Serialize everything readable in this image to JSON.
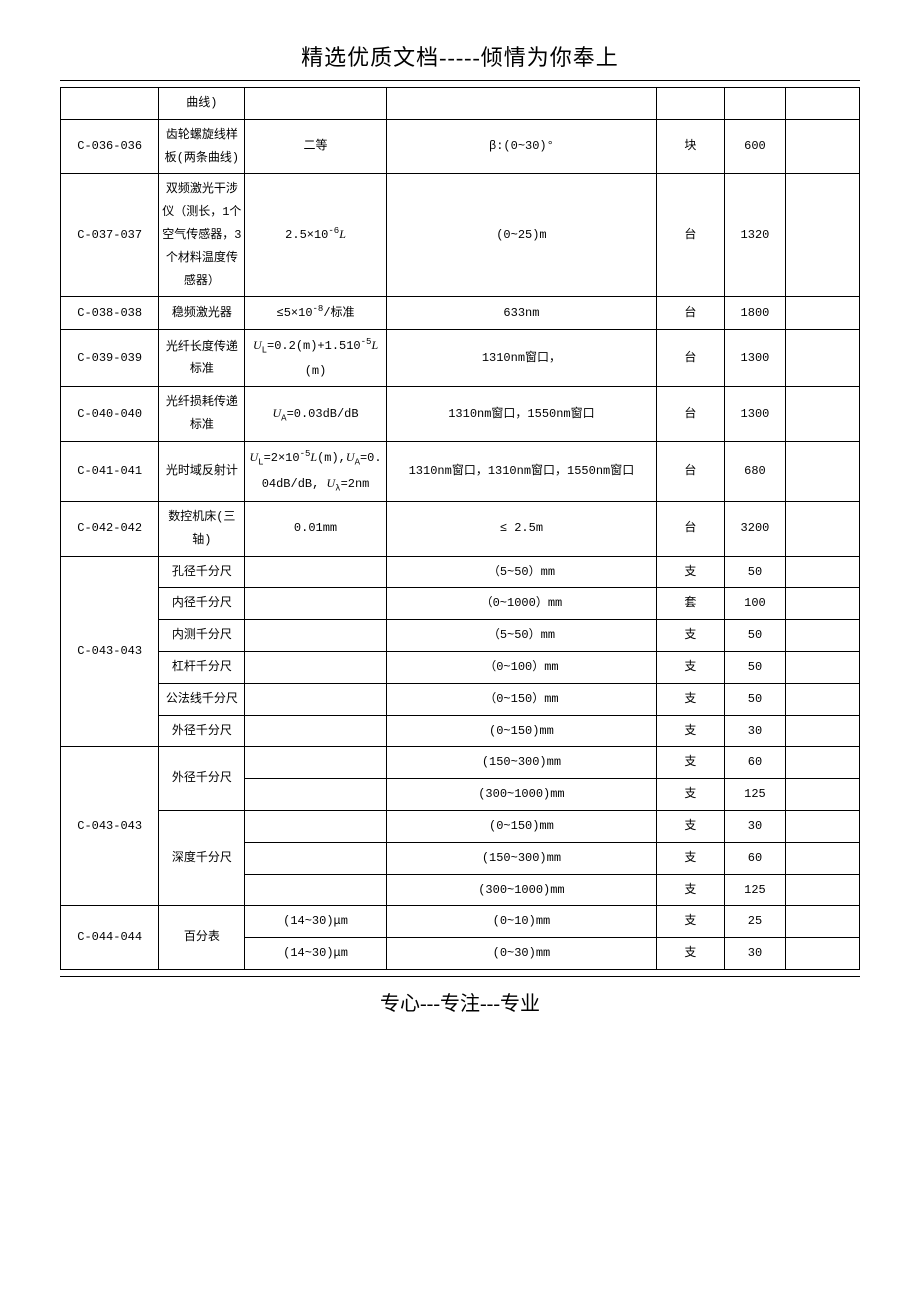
{
  "header": "精选优质文档-----倾情为你奉上",
  "footer": "专心---专注---专业",
  "rows": [
    {
      "c1": "",
      "c2": "曲线)",
      "c3": "",
      "c4": "",
      "c5": "",
      "c6": "",
      "c7": ""
    },
    {
      "c1": "C-036-036",
      "c2": "齿轮螺旋线样板(两条曲线)",
      "c3": "二等",
      "c4": "β:(0~30)°",
      "c5": "块",
      "c6": "600",
      "c7": ""
    },
    {
      "c1": "C-037-037",
      "c2": "双频激光干涉仪（测长，1个空气传感器，3个材料温度传感器）",
      "c3": "2.5×10⁻⁶L",
      "c4": "(0~25)m",
      "c5": "台",
      "c6": "1320",
      "c7": ""
    },
    {
      "c1": "C-038-038",
      "c2": "稳频激光器",
      "c3": "≤5×10⁻⁸/标准",
      "c4": "633nm",
      "c5": "台",
      "c6": "1800",
      "c7": ""
    },
    {
      "c1": "C-039-039",
      "c2": "光纤长度传递标准",
      "c3": "UL=0.2(m)+1.510⁻⁵L(m)",
      "c4": "1310nm窗口，",
      "c5": "台",
      "c6": "1300",
      "c7": ""
    },
    {
      "c1": "C-040-040",
      "c2": "光纤损耗传递标准",
      "c3": "UA=0.03dB/dB",
      "c4": "1310nm窗口，1550nm窗口",
      "c5": "台",
      "c6": "1300",
      "c7": ""
    },
    {
      "c1": "C-041-041",
      "c2": "光时域反射计",
      "c3": "UL=2×10⁻⁵L(m),UA=0.04dB/dB, Uλ=2nm",
      "c4": "1310nm窗口，1310nm窗口，1550nm窗口",
      "c5": "台",
      "c6": "680",
      "c7": ""
    },
    {
      "c1": "C-042-042",
      "c2": "数控机床(三轴)",
      "c3": "0.01mm",
      "c4": "≤ 2.5m",
      "c5": "台",
      "c6": "3200",
      "c7": ""
    }
  ],
  "group43a": {
    "code": "C-043-043",
    "items": [
      {
        "name": "孔径千分尺",
        "c3": "",
        "c4": "（5~50）mm",
        "c5": "支",
        "c6": "50",
        "c7": ""
      },
      {
        "name": "内径千分尺",
        "c3": "",
        "c4": "（0~1000）mm",
        "c5": "套",
        "c6": "100",
        "c7": ""
      },
      {
        "name": "内测千分尺",
        "c3": "",
        "c4": "（5~50）mm",
        "c5": "支",
        "c6": "50",
        "c7": ""
      },
      {
        "name": "杠杆千分尺",
        "c3": "",
        "c4": "（0~100）mm",
        "c5": "支",
        "c6": "50",
        "c7": ""
      },
      {
        "name": "公法线千分尺",
        "c3": "",
        "c4": "（0~150）mm",
        "c5": "支",
        "c6": "50",
        "c7": ""
      },
      {
        "name": "外径千分尺",
        "c3": "",
        "c4": "(0~150)mm",
        "c5": "支",
        "c6": "30",
        "c7": ""
      }
    ]
  },
  "group43b": {
    "code": "C-043-043",
    "outer": {
      "name": "外径千分尺",
      "rows": [
        {
          "c3": "",
          "c4": "(150~300)mm",
          "c5": "支",
          "c6": "60",
          "c7": ""
        },
        {
          "c3": "",
          "c4": "(300~1000)mm",
          "c5": "支",
          "c6": "125",
          "c7": ""
        }
      ]
    },
    "depth": {
      "name": "深度千分尺",
      "rows": [
        {
          "c3": "",
          "c4": "(0~150)mm",
          "c5": "支",
          "c6": "30",
          "c7": ""
        },
        {
          "c3": "",
          "c4": "(150~300)mm",
          "c5": "支",
          "c6": "60",
          "c7": ""
        },
        {
          "c3": "",
          "c4": "(300~1000)mm",
          "c5": "支",
          "c6": "125",
          "c7": ""
        }
      ]
    }
  },
  "group44": {
    "code": "C-044-044",
    "name": "百分表",
    "rows": [
      {
        "c3": "(14~30)μm",
        "c4": "(0~10)mm",
        "c5": "支",
        "c6": "25",
        "c7": ""
      },
      {
        "c3": "(14~30)μm",
        "c4": "(0~30)mm",
        "c5": "支",
        "c6": "30",
        "c7": ""
      }
    ]
  }
}
